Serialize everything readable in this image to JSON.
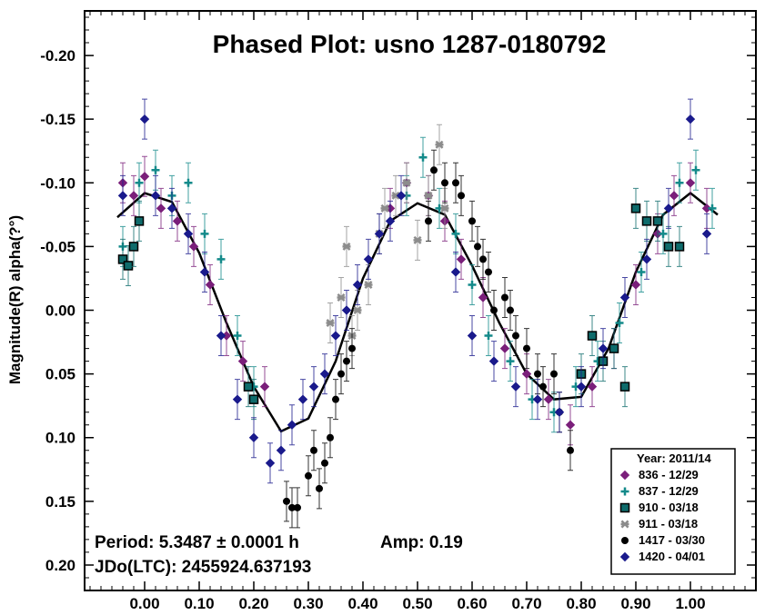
{
  "chart_data": {
    "type": "scatter",
    "title": "Phased Plot: usno 1287-0180792",
    "xlabel": "",
    "ylabel": "Magnitude(R) alpha(?°)",
    "xlim": [
      -0.11,
      1.12
    ],
    "ylim": [
      0.22,
      -0.235
    ],
    "y_inverted": true,
    "x_ticks": [
      "0.00",
      "0.10",
      "0.20",
      "0.30",
      "0.40",
      "0.50",
      "0.60",
      "0.70",
      "0.80",
      "0.90",
      "1.00"
    ],
    "y_ticks": [
      "-0.20",
      "-0.15",
      "-0.10",
      "-0.05",
      "0.00",
      "0.05",
      "0.10",
      "0.15",
      "0.20"
    ],
    "x_tick_values": [
      0,
      0.1,
      0.2,
      0.3,
      0.4,
      0.5,
      0.6,
      0.7,
      0.8,
      0.9,
      1.0
    ],
    "y_tick_values": [
      -0.2,
      -0.15,
      -0.1,
      -0.05,
      0,
      0.05,
      0.1,
      0.15,
      0.2
    ],
    "grid": false,
    "legend_position": "bottom-right",
    "legend_title": "Year: 2011/14",
    "annotations": {
      "period": "Period: 5.3487 ± 0.0001 h",
      "amp": "Amp: 0.19",
      "jdo": "JDo(LTC): 2455924.637193"
    },
    "fit_curve": {
      "x": [
        -0.05,
        0.0,
        0.05,
        0.1,
        0.15,
        0.2,
        0.25,
        0.3,
        0.35,
        0.4,
        0.45,
        0.5,
        0.55,
        0.6,
        0.65,
        0.7,
        0.75,
        0.8,
        0.85,
        0.9,
        0.95,
        1.0,
        1.05
      ],
      "y": [
        -0.073,
        -0.092,
        -0.085,
        -0.045,
        0.01,
        0.06,
        0.095,
        0.085,
        0.04,
        -0.025,
        -0.07,
        -0.084,
        -0.075,
        -0.035,
        0.01,
        0.05,
        0.07,
        0.068,
        0.03,
        -0.03,
        -0.075,
        -0.092,
        -0.075
      ]
    },
    "series": [
      {
        "name": "836 - 12/29",
        "color": "#7a1f7a",
        "marker": "diamond",
        "x": [
          -0.04,
          -0.02,
          0.0,
          0.03,
          0.06,
          0.09,
          0.12,
          0.15,
          0.18,
          0.22,
          0.45,
          0.48,
          0.52,
          0.55,
          0.58,
          0.62,
          0.66,
          0.7,
          0.74,
          0.78,
          0.82,
          0.86,
          0.9,
          0.94,
          0.97,
          1.0,
          1.03
        ],
        "y": [
          -0.1,
          -0.09,
          -0.105,
          -0.08,
          -0.07,
          -0.05,
          -0.02,
          0.02,
          0.04,
          0.06,
          -0.08,
          -0.1,
          -0.09,
          -0.07,
          -0.04,
          -0.01,
          0.03,
          0.05,
          0.07,
          0.09,
          0.06,
          0.03,
          -0.02,
          -0.06,
          -0.09,
          -0.1,
          -0.08
        ]
      },
      {
        "name": "837 - 12/29",
        "color": "#138a8a",
        "marker": "plus",
        "x": [
          -0.04,
          -0.01,
          0.02,
          0.05,
          0.08,
          0.11,
          0.14,
          0.17,
          0.2,
          0.48,
          0.51,
          0.54,
          0.57,
          0.6,
          0.63,
          0.67,
          0.71,
          0.75,
          0.79,
          0.83,
          0.87,
          0.91,
          0.95,
          0.98,
          1.01,
          1.04
        ],
        "y": [
          -0.05,
          -0.1,
          -0.11,
          -0.09,
          -0.1,
          -0.06,
          -0.04,
          0.02,
          0.06,
          -0.09,
          -0.12,
          -0.08,
          -0.06,
          -0.02,
          0.02,
          0.04,
          0.07,
          0.08,
          0.06,
          0.04,
          0.01,
          -0.03,
          -0.06,
          -0.1,
          -0.11,
          -0.08
        ]
      },
      {
        "name": "910 - 03/18",
        "color": "#0e6b6b",
        "marker": "square",
        "x": [
          -0.04,
          -0.03,
          -0.02,
          -0.01,
          0.19,
          0.2,
          0.8,
          0.82,
          0.84,
          0.86,
          0.88,
          0.9,
          0.92,
          0.94,
          0.96,
          0.98
        ],
        "y": [
          -0.04,
          -0.035,
          -0.05,
          -0.07,
          0.06,
          0.07,
          0.05,
          0.02,
          0.04,
          0.03,
          0.06,
          -0.08,
          -0.07,
          -0.07,
          -0.05,
          -0.05
        ]
      },
      {
        "name": "911 - 03/18",
        "color": "#8c8c8c",
        "marker": "asterisk",
        "x": [
          0.34,
          0.36,
          0.37,
          0.38,
          0.39,
          0.41,
          0.43,
          0.44,
          0.46,
          0.48,
          0.5,
          0.52,
          0.54,
          0.55
        ],
        "y": [
          0.01,
          -0.01,
          -0.05,
          0.02,
          0.0,
          -0.02,
          -0.06,
          -0.08,
          -0.09,
          -0.1,
          -0.055,
          -0.09,
          -0.13,
          -0.08
        ]
      },
      {
        "name": "1417 - 03/30",
        "color": "#000000",
        "marker": "circle",
        "x": [
          0.26,
          0.27,
          0.28,
          0.3,
          0.31,
          0.32,
          0.33,
          0.34,
          0.35,
          0.36,
          0.37,
          0.38,
          0.52,
          0.53,
          0.55,
          0.57,
          0.58,
          0.6,
          0.61,
          0.62,
          0.63,
          0.64,
          0.66,
          0.67,
          0.68,
          0.7,
          0.72,
          0.73,
          0.75,
          0.76,
          0.78
        ],
        "y": [
          0.15,
          0.155,
          0.155,
          0.13,
          0.11,
          0.14,
          0.12,
          0.1,
          0.07,
          0.05,
          0.04,
          0.03,
          -0.07,
          -0.11,
          -0.1,
          -0.1,
          -0.09,
          -0.07,
          -0.05,
          -0.04,
          -0.03,
          0.0,
          -0.01,
          0.0,
          0.02,
          0.03,
          0.05,
          0.06,
          0.05,
          0.08,
          0.11
        ]
      },
      {
        "name": "1420 - 04/01",
        "color": "#1a1a8c",
        "marker": "diamond",
        "x": [
          -0.04,
          0.0,
          0.02,
          0.05,
          0.08,
          0.11,
          0.14,
          0.17,
          0.2,
          0.23,
          0.25,
          0.27,
          0.29,
          0.31,
          0.33,
          0.35,
          0.37,
          0.39,
          0.41,
          0.43,
          0.45,
          0.47,
          0.57,
          0.6,
          0.64,
          0.68,
          0.72,
          0.76,
          0.8,
          0.84,
          0.88,
          0.92,
          0.96,
          1.0,
          1.03
        ],
        "y": [
          -0.09,
          -0.15,
          -0.09,
          -0.08,
          -0.06,
          -0.03,
          0.02,
          0.07,
          0.1,
          0.12,
          0.11,
          0.09,
          0.07,
          0.06,
          0.05,
          0.02,
          0.0,
          -0.02,
          -0.04,
          -0.06,
          -0.07,
          -0.09,
          -0.03,
          0.02,
          0.04,
          0.06,
          0.07,
          0.08,
          0.06,
          0.03,
          -0.01,
          -0.04,
          -0.08,
          -0.15,
          -0.06
        ]
      }
    ]
  }
}
